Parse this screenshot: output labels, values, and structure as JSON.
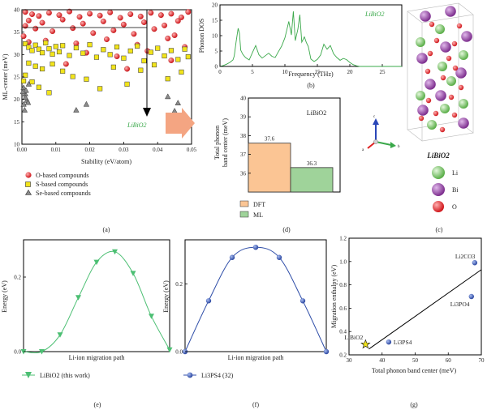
{
  "colors": {
    "o_fill": "#e8262b",
    "s_fill": "#f2e41b",
    "se_fill": "#8a8a8a",
    "dos_line": "#3aa84a",
    "dft_fill": "#fbc594",
    "ml_fill": "#9fd39a",
    "li_atom": "#7cc96b",
    "bi_atom": "#9b4aa8",
    "o_atom": "#e02020",
    "migration_green": "#4cbf73",
    "migration_blue": "#2f4ea8",
    "annot_green": "#3aa84a",
    "arrow_salmon": "#f4a582"
  },
  "panel_labels": [
    "(a)",
    "(b)",
    "(c)",
    "(d)",
    "(e)",
    "(f)",
    "(g)"
  ],
  "chart_data": [
    {
      "id": "a",
      "type": "scatter",
      "xlabel": "Stability (eV/atom)",
      "ylabel": "ML-center (meV)",
      "xlim": [
        0,
        0.05
      ],
      "ylim": [
        10,
        40
      ],
      "xticks": [
        "0.00",
        "0.01",
        "0.02",
        "0.03",
        "0.04",
        "0.05"
      ],
      "yticks": [
        "10",
        "15",
        "20",
        "25",
        "30",
        "35",
        "40"
      ],
      "annotation": "LiBiO2",
      "legend_placement": "bottom",
      "series": [
        {
          "name": "O-based compounds",
          "marker": "circle",
          "points": [
            [
              0.001,
              39.5
            ],
            [
              0.003,
              39
            ],
            [
              0.005,
              38.6
            ],
            [
              0.008,
              39.3
            ],
            [
              0.011,
              38.8
            ],
            [
              0.014,
              39.6
            ],
            [
              0.017,
              38.4
            ],
            [
              0.02,
              39.1
            ],
            [
              0.023,
              38.7
            ],
            [
              0.026,
              39.4
            ],
            [
              0.029,
              38.2
            ],
            [
              0.032,
              39
            ],
            [
              0.035,
              38.5
            ],
            [
              0.038,
              39.3
            ],
            [
              0.041,
              38.8
            ],
            [
              0.044,
              39.1
            ],
            [
              0.047,
              38.3
            ],
            [
              0.049,
              39.5
            ],
            [
              0.002,
              37.6
            ],
            [
              0.006,
              37.1
            ],
            [
              0.012,
              37.8
            ],
            [
              0.018,
              36.9
            ],
            [
              0.024,
              37.4
            ],
            [
              0.03,
              36.7
            ],
            [
              0.036,
              37.2
            ],
            [
              0.042,
              36.5
            ],
            [
              0.046,
              37.5
            ],
            [
              0.004,
              35.8
            ],
            [
              0.009,
              35.2
            ],
            [
              0.015,
              35.9
            ],
            [
              0.021,
              34.8
            ],
            [
              0.027,
              35.4
            ],
            [
              0.033,
              34.6
            ],
            [
              0.039,
              35.7
            ],
            [
              0.045,
              34.3
            ],
            [
              0.007,
              33.1
            ],
            [
              0.016,
              32.5
            ],
            [
              0.025,
              33.4
            ],
            [
              0.034,
              32.2
            ],
            [
              0.043,
              33.6
            ],
            [
              0.048,
              31.7
            ],
            [
              0.019,
              30.4
            ],
            [
              0.028,
              29.6
            ],
            [
              0.037,
              30.8
            ],
            [
              0.044,
              28.7
            ],
            [
              0.013,
              27.9
            ],
            [
              0.031,
              26.8
            ],
            [
              0.001,
              36.4
            ],
            [
              0.0005,
              34.1
            ],
            [
              0.002,
              32.8
            ]
          ]
        },
        {
          "name": "S-based compounds",
          "marker": "square",
          "points": [
            [
              0.001,
              32.4
            ],
            [
              0.002,
              31.6
            ],
            [
              0.003,
              30.9
            ],
            [
              0.004,
              32.1
            ],
            [
              0.005,
              31.2
            ],
            [
              0.006,
              30.4
            ],
            [
              0.007,
              32.6
            ],
            [
              0.008,
              31.3
            ],
            [
              0.009,
              30.1
            ],
            [
              0.01,
              31.8
            ],
            [
              0.011,
              30.6
            ],
            [
              0.012,
              32
            ],
            [
              0.014,
              29.8
            ],
            [
              0.016,
              31.5
            ],
            [
              0.018,
              30.3
            ],
            [
              0.02,
              32.2
            ],
            [
              0.022,
              29.4
            ],
            [
              0.024,
              31.1
            ],
            [
              0.026,
              30
            ],
            [
              0.028,
              31.7
            ],
            [
              0.03,
              29.2
            ],
            [
              0.032,
              30.8
            ],
            [
              0.034,
              31.9
            ],
            [
              0.036,
              28.6
            ],
            [
              0.038,
              30.5
            ],
            [
              0.04,
              31.4
            ],
            [
              0.042,
              29.7
            ],
            [
              0.044,
              30.9
            ],
            [
              0.046,
              28.9
            ],
            [
              0.048,
              31.2
            ],
            [
              0.049,
              29.5
            ],
            [
              0.002,
              28.1
            ],
            [
              0.004,
              27.4
            ],
            [
              0.006,
              26.8
            ],
            [
              0.009,
              27.9
            ],
            [
              0.012,
              26.3
            ],
            [
              0.015,
              25.1
            ],
            [
              0.019,
              24.5
            ],
            [
              0.023,
              22.4
            ],
            [
              0.027,
              27.2
            ],
            [
              0.031,
              23.4
            ],
            [
              0.035,
              26.5
            ],
            [
              0.039,
              27.7
            ],
            [
              0.043,
              24.6
            ],
            [
              0.047,
              26.1
            ],
            [
              0.001,
              25.4
            ],
            [
              0.003,
              23.9
            ],
            [
              0.005,
              22.7
            ],
            [
              0.008,
              21.5
            ],
            [
              0.0005,
              24.1
            ]
          ]
        },
        {
          "name": "Se-based compounds",
          "marker": "triangle",
          "points": [
            [
              0.0005,
              22.6
            ],
            [
              0.001,
              21.2
            ],
            [
              0.0015,
              19.8
            ],
            [
              0.0005,
              18.9
            ],
            [
              0.001,
              20.4
            ],
            [
              0.002,
              23.4
            ],
            [
              0.0008,
              17.6
            ],
            [
              0.0012,
              22
            ],
            [
              0.0018,
              19.3
            ],
            [
              0.0003,
              21.7
            ],
            [
              0.016,
              17.6
            ],
            [
              0.019,
              18.9
            ],
            [
              0.043,
              20.6
            ],
            [
              0.045,
              17.4
            ],
            [
              0.046,
              19.2
            ]
          ]
        }
      ]
    },
    {
      "id": "b",
      "type": "line",
      "xlabel": "Frequency (THz)",
      "ylabel": "Phonon DOS",
      "xlim": [
        0,
        28
      ],
      "ylim": [
        0,
        20
      ],
      "xticks": [
        "0",
        "5",
        "10",
        "15",
        "20",
        "25"
      ],
      "yticks": [
        "0",
        "5",
        "10",
        "15",
        "20"
      ],
      "annotation": "LiBiO2",
      "x": [
        0,
        0.5,
        1,
        1.5,
        2,
        2.2,
        2.5,
        2.8,
        3,
        3.2,
        3.5,
        3.8,
        4,
        4.5,
        5,
        5.5,
        6,
        6.5,
        7,
        7.5,
        8,
        8.5,
        9,
        9.5,
        10,
        10.3,
        10.6,
        11,
        11.3,
        11.6,
        12,
        12.3,
        12.6,
        13,
        13.3,
        13.6,
        14,
        14.5,
        15,
        15.5,
        16,
        16.5,
        17,
        17.5,
        18,
        18.5,
        19,
        19.5,
        20,
        20.5,
        21,
        21.5,
        22,
        28
      ],
      "y": [
        0,
        0.3,
        0.7,
        1.3,
        2.1,
        3.4,
        8.2,
        12.4,
        10.8,
        5.3,
        4,
        3.2,
        2.8,
        2.1,
        4.5,
        6.8,
        3.8,
        2.7,
        3.5,
        4.3,
        3.3,
        2.9,
        4.8,
        6.6,
        9.3,
        11.9,
        14.6,
        10.2,
        17.9,
        8.4,
        12.1,
        16.8,
        7.9,
        9.6,
        7.8,
        6.5,
        2.4,
        1.6,
        2.3,
        3.7,
        7.2,
        5.6,
        6.8,
        4.1,
        2.9,
        2,
        2.6,
        2.2,
        1.3,
        0.6,
        0.2,
        0,
        0,
        0
      ]
    },
    {
      "id": "d",
      "type": "bar",
      "title": "LiBiO2",
      "ylabel": "Total phonon band center (meV)",
      "ylim": [
        35,
        40
      ],
      "yticks": [
        "36",
        "37",
        "38",
        "39",
        "40"
      ],
      "categories": [
        "DFT",
        "ML"
      ],
      "values": [
        37.6,
        36.3
      ],
      "value_labels": [
        "37.6",
        "36.3"
      ],
      "legend_placement": "bottom-left"
    },
    {
      "id": "e",
      "type": "line",
      "xlabel": "Li-ion migration path",
      "ylabel": "Energy (eV)",
      "ylim": [
        0,
        0.3
      ],
      "yticks": [
        "0.0",
        "0.2"
      ],
      "series": [
        {
          "name": "LiBiO2 (this work)",
          "marker": "triangle-down",
          "x": [
            0,
            1,
            2,
            3,
            4,
            5,
            6,
            7,
            8
          ],
          "y": [
            0,
            0,
            0.045,
            0.145,
            0.24,
            0.268,
            0.21,
            0.095,
            0.005
          ]
        }
      ]
    },
    {
      "id": "f",
      "type": "line",
      "xlabel": "Li-ion migration path",
      "ylabel": "Energy (eV)",
      "ylim": [
        0,
        0.33
      ],
      "yticks": [
        "0.0",
        "0.2"
      ],
      "series": [
        {
          "name": "Li3PS4 (32)",
          "marker": "circle",
          "x": [
            0,
            1,
            2,
            3,
            4,
            5,
            6
          ],
          "y": [
            0,
            0.15,
            0.278,
            0.308,
            0.278,
            0.15,
            0
          ]
        }
      ]
    },
    {
      "id": "g",
      "type": "scatter",
      "xlabel": "Total phonon band center (meV)",
      "ylabel": "Migration enthalpy (eV)",
      "xlim": [
        30,
        70
      ],
      "ylim": [
        0.2,
        1.2
      ],
      "xticks": [
        "30",
        "40",
        "50",
        "60",
        "70"
      ],
      "yticks": [
        "0.2",
        "0.4",
        "0.6",
        "0.8",
        "1.0",
        "1.2"
      ],
      "points": [
        {
          "label": "Li2CO3",
          "x": 68,
          "y": 0.99,
          "marker": "circle"
        },
        {
          "label": "Li3PO4",
          "x": 67,
          "y": 0.7,
          "marker": "circle"
        },
        {
          "label": "Li3PS4",
          "x": 42,
          "y": 0.31,
          "marker": "circle"
        },
        {
          "label": "LiBiO2",
          "x": 35,
          "y": 0.29,
          "marker": "star"
        }
      ],
      "fit_line": {
        "x": [
          36,
          70
        ],
        "y": [
          0.25,
          0.93
        ]
      }
    }
  ],
  "crystal": {
    "title": "LiBiO2",
    "legend": [
      {
        "element": "Li",
        "color_key": "li_atom"
      },
      {
        "element": "Bi",
        "color_key": "bi_atom"
      },
      {
        "element": "O",
        "color_key": "o_atom"
      }
    ],
    "axes_labels": [
      "a",
      "b",
      "c"
    ]
  }
}
